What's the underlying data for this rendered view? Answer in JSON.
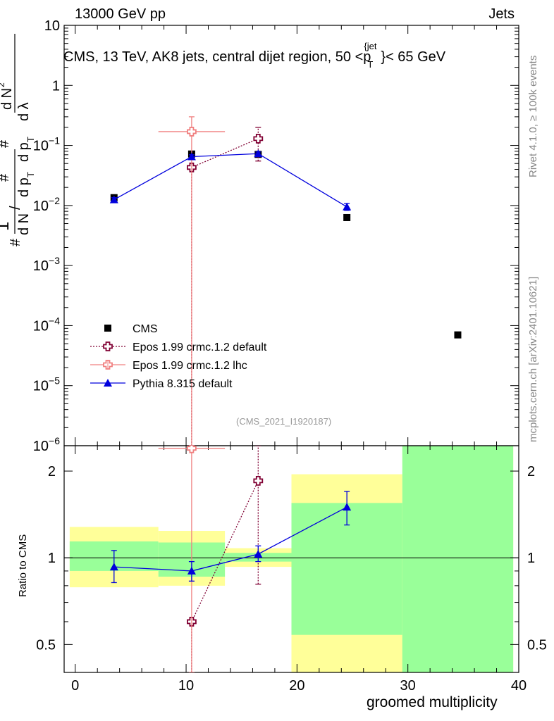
{
  "header": {
    "left_label": "13000 GeV pp",
    "right_label": "Jets",
    "subtitle_main": "CMS, 13 TeV, AK8 jets, central dijet region, 50 <p",
    "subtitle_sub": "T",
    "subtitle_sup": "{jet",
    "subtitle_end": "}< 65 GeV"
  },
  "side_labels": {
    "rivet": "Rivet 4.1.0, ≥ 100k events",
    "mcplots": "mcplots.cern.ch [arXiv:2401.10621]"
  },
  "analysis_tag": "(CMS_2021_I1920187)",
  "ylabel_ratio": "Ratio to CMS",
  "xlabel": "groomed multiplicity",
  "colors": {
    "cms": "#000000",
    "epos_default": "#800033",
    "epos_lhc": "#f08080",
    "pythia": "#0000dd",
    "band_inner": "#99ff99",
    "band_outer": "#ffff99"
  },
  "chart_data": [
    {
      "type": "scatter",
      "title": "CMS, 13 TeV, AK8 jets, central dijet region, 50 < pT(jet) < 65 GeV",
      "xlabel": "groomed multiplicity",
      "ylabel": "1/N dN/dλ",
      "yscale": "log",
      "xlim": [
        -1,
        40
      ],
      "ylim": [
        1e-06,
        10
      ],
      "x_ticks": [
        "0",
        "10",
        "20",
        "30",
        "40"
      ],
      "y_ticks": [
        "10^-6",
        "10^-5",
        "10^-4",
        "10^-3",
        "10^-2",
        "10^-1",
        "1",
        "10"
      ],
      "legend_position": "lower-left",
      "series": [
        {
          "name": "CMS",
          "marker": "square",
          "points": [
            {
              "x": 3.5,
              "y": 0.0135
            },
            {
              "x": 10.5,
              "y": 0.072
            },
            {
              "x": 16.5,
              "y": 0.071
            },
            {
              "x": 24.5,
              "y": 0.0063
            },
            {
              "x": 34.5,
              "y": 7e-05
            }
          ]
        },
        {
          "name": "Epos 1.99 crmc.1.2 default",
          "marker": "open-cross",
          "linestyle": "dotted",
          "points": [
            {
              "x": 10.5,
              "y": 0.043,
              "ylo": 1e-06,
              "yhi": 0.043
            },
            {
              "x": 16.5,
              "y": 0.13,
              "ylo": 0.055,
              "yhi": 0.2
            }
          ]
        },
        {
          "name": "Epos 1.99 crmc.1.2 lhc",
          "marker": "open-cross",
          "linestyle": "solid",
          "points": [
            {
              "x": 10.5,
              "y": 0.17,
              "ylo": 1e-06,
              "yhi": 0.3,
              "xlo": 7.5,
              "xhi": 13.5
            }
          ]
        },
        {
          "name": "Pythia 8.315 default",
          "marker": "triangle",
          "linestyle": "solid",
          "points": [
            {
              "x": 3.5,
              "y": 0.0125,
              "ylo": 0.0115,
              "yhi": 0.0135
            },
            {
              "x": 10.5,
              "y": 0.065,
              "ylo": 0.06,
              "yhi": 0.07
            },
            {
              "x": 16.5,
              "y": 0.073,
              "ylo": 0.068,
              "yhi": 0.078
            },
            {
              "x": 24.5,
              "y": 0.0095,
              "ylo": 0.0083,
              "yhi": 0.0108
            }
          ]
        }
      ]
    },
    {
      "type": "scatter",
      "title": "Ratio to CMS",
      "xlabel": "groomed multiplicity",
      "ylabel": "Ratio to CMS",
      "yscale": "log",
      "xlim": [
        -1,
        40
      ],
      "ylim": [
        0.4,
        2.45
      ],
      "x_ticks": [
        "0",
        "10",
        "20",
        "30",
        "40"
      ],
      "y_ticks": [
        "0.5",
        "1",
        "2"
      ],
      "reference_line": 1,
      "uncertainty_bands": [
        {
          "xlo": -0.5,
          "xhi": 7.5,
          "inner": [
            0.9,
            1.14
          ],
          "outer": [
            0.79,
            1.28
          ]
        },
        {
          "xlo": 7.5,
          "xhi": 13.5,
          "inner": [
            0.86,
            1.13
          ],
          "outer": [
            0.8,
            1.24
          ]
        },
        {
          "xlo": 13.5,
          "xhi": 19.5,
          "inner": [
            0.97,
            1.04
          ],
          "outer": [
            0.93,
            1.08
          ]
        },
        {
          "xlo": 19.5,
          "xhi": 29.5,
          "inner": [
            0.4,
            1.55
          ],
          "outer": [
            0.4,
            1.95
          ],
          "inner_lo_band": [
            0.4,
            0.54
          ]
        },
        {
          "xlo": 29.5,
          "xhi": 39.5,
          "inner": [
            0.4,
            2.45
          ],
          "outer": [
            0.4,
            2.45
          ]
        }
      ],
      "series": [
        {
          "name": "Epos 1.99 crmc.1.2 default",
          "points": [
            {
              "x": 10.5,
              "y": 0.6,
              "ylo": 0.4,
              "yhi": 0.6
            },
            {
              "x": 16.5,
              "y": 1.85,
              "ylo": 0.81,
              "yhi": 2.45
            }
          ]
        },
        {
          "name": "Epos 1.99 crmc.1.2 lhc",
          "points": [
            {
              "x": 10.5,
              "y": 2.4,
              "ylo": 0.4,
              "yhi": 2.45,
              "xlo": 7.5,
              "xhi": 13.5
            }
          ]
        },
        {
          "name": "Pythia 8.315 default",
          "points": [
            {
              "x": 3.5,
              "y": 0.93,
              "ylo": 0.82,
              "yhi": 1.06
            },
            {
              "x": 10.5,
              "y": 0.9,
              "ylo": 0.83,
              "yhi": 0.97
            },
            {
              "x": 16.5,
              "y": 1.03,
              "ylo": 0.97,
              "yhi": 1.1
            },
            {
              "x": 24.5,
              "y": 1.5,
              "ylo": 1.3,
              "yhi": 1.7
            }
          ]
        }
      ]
    }
  ]
}
